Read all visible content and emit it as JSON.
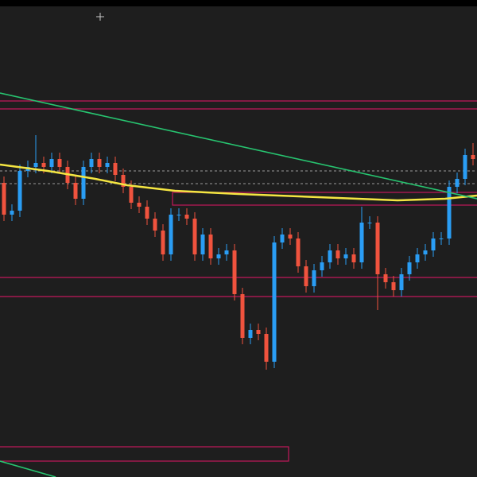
{
  "chart_data": {
    "type": "candlestick",
    "ylim": [
      0,
      600
    ],
    "up_color": "#2a9df4",
    "down_color": "#f0533e",
    "open": [
      370,
      330,
      335,
      385,
      390,
      395,
      390,
      400,
      390,
      370,
      350,
      390,
      400,
      390,
      395,
      380,
      365,
      345,
      340,
      325,
      310,
      280,
      330,
      330,
      325,
      280,
      305,
      275,
      280,
      285,
      230,
      175,
      185,
      180,
      145,
      295,
      305,
      300,
      265,
      240,
      260,
      270,
      285,
      275,
      280,
      270,
      320,
      320,
      255,
      245,
      235,
      255,
      270,
      280,
      285,
      300,
      300,
      365,
      375,
      405
    ],
    "high": [
      378,
      343,
      393,
      398,
      430,
      403,
      408,
      408,
      398,
      378,
      398,
      408,
      408,
      403,
      403,
      388,
      373,
      353,
      348,
      333,
      318,
      338,
      338,
      338,
      333,
      313,
      313,
      288,
      293,
      293,
      238,
      193,
      193,
      188,
      303,
      313,
      313,
      308,
      273,
      268,
      278,
      293,
      293,
      288,
      288,
      340,
      328,
      328,
      263,
      253,
      263,
      278,
      288,
      293,
      308,
      308,
      373,
      383,
      413,
      420
    ],
    "low": [
      322,
      322,
      327,
      377,
      382,
      382,
      382,
      382,
      362,
      342,
      342,
      382,
      382,
      382,
      372,
      357,
      337,
      332,
      317,
      302,
      272,
      272,
      322,
      317,
      272,
      272,
      267,
      267,
      272,
      222,
      167,
      167,
      172,
      135,
      137,
      287,
      292,
      257,
      232,
      232,
      252,
      262,
      267,
      267,
      262,
      262,
      312,
      210,
      237,
      227,
      227,
      247,
      262,
      272,
      277,
      292,
      292,
      357,
      367,
      392
    ],
    "close": [
      330,
      335,
      385,
      390,
      395,
      390,
      400,
      390,
      370,
      350,
      390,
      400,
      390,
      395,
      380,
      365,
      345,
      340,
      325,
      310,
      280,
      330,
      330,
      325,
      280,
      305,
      275,
      280,
      285,
      230,
      175,
      185,
      180,
      145,
      295,
      305,
      300,
      265,
      240,
      260,
      270,
      285,
      275,
      280,
      270,
      320,
      320,
      255,
      245,
      235,
      255,
      270,
      280,
      285,
      300,
      300,
      365,
      375,
      405,
      400
    ]
  }
}
